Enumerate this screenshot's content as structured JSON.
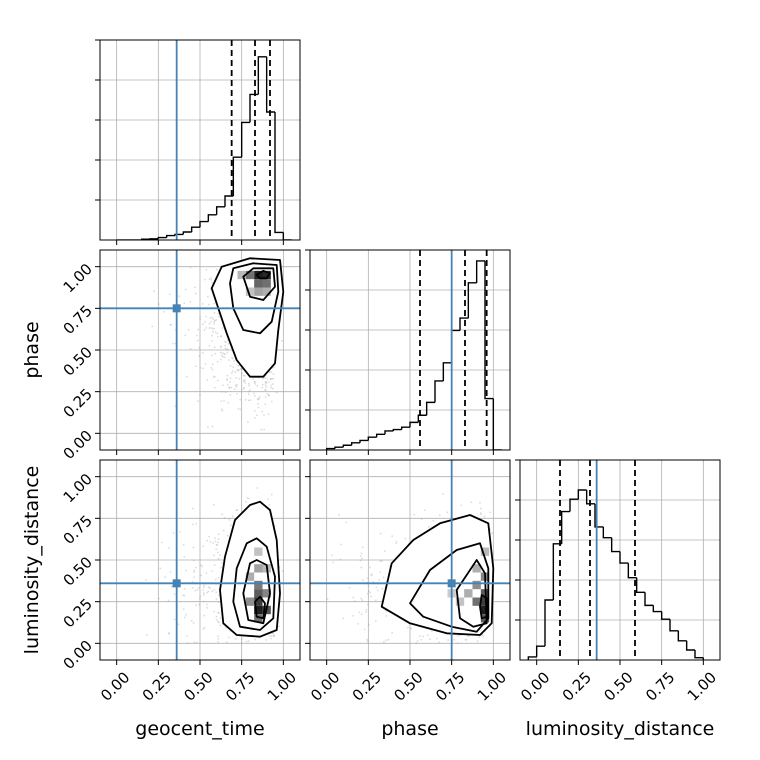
{
  "chart_data": {
    "type": "corner",
    "parameters": [
      "geocent_time",
      "phase",
      "luminosity_distance"
    ],
    "axis_range": [
      -0.1,
      1.1
    ],
    "tick_labels": [
      "0.00",
      "0.25",
      "0.50",
      "0.75",
      "1.00"
    ],
    "grid": true,
    "truths": {
      "geocent_time": 0.36,
      "phase": 0.75,
      "luminosity_distance": 0.36
    },
    "colors": {
      "truth": "#4682b4",
      "hist": "#000000",
      "points": "#9a9a9a",
      "grid": "#b0b0b0"
    },
    "histograms": [
      {
        "parameter": "geocent_time",
        "bin_edges": [
          0.0,
          0.05,
          0.1,
          0.15,
          0.2,
          0.25,
          0.3,
          0.35,
          0.4,
          0.45,
          0.5,
          0.55,
          0.6,
          0.65,
          0.7,
          0.75,
          0.8,
          0.85,
          0.9,
          0.95,
          1.0,
          1.05
        ],
        "counts": [
          0,
          0,
          0,
          0.2,
          0.3,
          0.6,
          1.1,
          1.4,
          2.0,
          3.2,
          4.6,
          6.3,
          8.3,
          11,
          20.7,
          29.4,
          36.4,
          45.8,
          32,
          1.9,
          0
        ],
        "ymax": 50,
        "quantiles": [
          0.69,
          0.83,
          0.92
        ]
      },
      {
        "parameter": "phase",
        "bin_edges": [
          0.0,
          0.05,
          0.1,
          0.15,
          0.2,
          0.25,
          0.3,
          0.35,
          0.4,
          0.45,
          0.5,
          0.55,
          0.6,
          0.65,
          0.7,
          0.75,
          0.8,
          0.85,
          0.9,
          0.95,
          1.0,
          1.05
        ],
        "counts": [
          0.3,
          0.6,
          1.0,
          1.5,
          2.0,
          2.7,
          3.3,
          4.0,
          4.3,
          4.8,
          5.8,
          7.3,
          10.0,
          14.5,
          18.3,
          25.1,
          27.7,
          35.1,
          39.7,
          10.8,
          0
        ],
        "ymax": 42,
        "quantiles": [
          0.56,
          0.83,
          0.96
        ]
      },
      {
        "parameter": "luminosity_distance",
        "bin_edges": [
          -0.05,
          0.0,
          0.05,
          0.1,
          0.15,
          0.2,
          0.25,
          0.3,
          0.35,
          0.4,
          0.45,
          0.5,
          0.55,
          0.6,
          0.65,
          0.7,
          0.75,
          0.8,
          0.85,
          0.9,
          0.95,
          1.0
        ],
        "counts": [
          0.4,
          1.8,
          7.8,
          15.1,
          19.3,
          20.9,
          22.1,
          20.3,
          17.3,
          15.9,
          14.1,
          12.6,
          10.7,
          8.8,
          7.1,
          6.3,
          5.3,
          3.8,
          2.5,
          1.3,
          0.3
        ],
        "ymax": 26,
        "quantiles": [
          0.14,
          0.32,
          0.59
        ]
      }
    ],
    "pairs": [
      {
        "x": "geocent_time",
        "y": "phase",
        "density_cells": [
          {
            "x": 0.85,
            "y": 0.95,
            "d": 1.0
          },
          {
            "x": 0.9,
            "y": 0.95,
            "d": 0.95
          },
          {
            "x": 0.8,
            "y": 0.95,
            "d": 0.6
          },
          {
            "x": 0.85,
            "y": 0.9,
            "d": 0.65
          },
          {
            "x": 0.9,
            "y": 0.9,
            "d": 0.6
          },
          {
            "x": 0.85,
            "y": 0.85,
            "d": 0.35
          },
          {
            "x": 0.9,
            "y": 0.85,
            "d": 0.3
          },
          {
            "x": 0.8,
            "y": 0.85,
            "d": 0.2
          },
          {
            "x": 0.75,
            "y": 0.95,
            "d": 0.25
          }
        ],
        "contours": [
          [
            [
              0.62,
              0.72
            ],
            [
              0.57,
              0.87
            ],
            [
              0.63,
              1.0
            ],
            [
              0.8,
              1.05
            ],
            [
              0.98,
              1.04
            ],
            [
              1.0,
              0.85
            ],
            [
              0.97,
              0.62
            ],
            [
              0.95,
              0.42
            ],
            [
              0.88,
              0.34
            ],
            [
              0.8,
              0.34
            ],
            [
              0.72,
              0.44
            ],
            [
              0.66,
              0.6
            ],
            [
              0.62,
              0.72
            ]
          ],
          [
            [
              0.68,
              0.9
            ],
            [
              0.7,
              0.99
            ],
            [
              0.82,
              1.02
            ],
            [
              0.96,
              1.01
            ],
            [
              0.97,
              0.85
            ],
            [
              0.93,
              0.67
            ],
            [
              0.86,
              0.6
            ],
            [
              0.76,
              0.62
            ],
            [
              0.7,
              0.75
            ],
            [
              0.68,
              0.9
            ]
          ],
          [
            [
              0.76,
              0.94
            ],
            [
              0.82,
              0.99
            ],
            [
              0.94,
              0.99
            ],
            [
              0.95,
              0.88
            ],
            [
              0.88,
              0.8
            ],
            [
              0.8,
              0.82
            ],
            [
              0.76,
              0.94
            ]
          ],
          [
            [
              0.84,
              0.95
            ],
            [
              0.88,
              0.975
            ],
            [
              0.92,
              0.96
            ],
            [
              0.9,
              0.93
            ],
            [
              0.86,
              0.93
            ],
            [
              0.84,
              0.95
            ]
          ]
        ]
      },
      {
        "x": "geocent_time",
        "y": "luminosity_distance",
        "density_cells": [
          {
            "x": 0.85,
            "y": 0.2,
            "d": 1.0
          },
          {
            "x": 0.85,
            "y": 0.25,
            "d": 0.85
          },
          {
            "x": 0.9,
            "y": 0.2,
            "d": 0.75
          },
          {
            "x": 0.85,
            "y": 0.3,
            "d": 0.7
          },
          {
            "x": 0.85,
            "y": 0.35,
            "d": 0.55
          },
          {
            "x": 0.9,
            "y": 0.3,
            "d": 0.5
          },
          {
            "x": 0.8,
            "y": 0.25,
            "d": 0.45
          },
          {
            "x": 0.85,
            "y": 0.45,
            "d": 0.35
          },
          {
            "x": 0.8,
            "y": 0.4,
            "d": 0.3
          },
          {
            "x": 0.9,
            "y": 0.45,
            "d": 0.25
          },
          {
            "x": 0.85,
            "y": 0.55,
            "d": 0.2
          },
          {
            "x": 0.85,
            "y": 0.15,
            "d": 0.6
          }
        ],
        "contours": [
          [
            [
              0.8,
              0.83
            ],
            [
              0.71,
              0.74
            ],
            [
              0.65,
              0.52
            ],
            [
              0.62,
              0.32
            ],
            [
              0.64,
              0.12
            ],
            [
              0.72,
              0.05
            ],
            [
              0.86,
              0.04
            ],
            [
              0.96,
              0.08
            ],
            [
              0.98,
              0.3
            ],
            [
              0.96,
              0.62
            ],
            [
              0.92,
              0.8
            ],
            [
              0.86,
              0.85
            ],
            [
              0.8,
              0.83
            ]
          ],
          [
            [
              0.78,
              0.6
            ],
            [
              0.72,
              0.45
            ],
            [
              0.7,
              0.25
            ],
            [
              0.74,
              0.1
            ],
            [
              0.86,
              0.08
            ],
            [
              0.94,
              0.15
            ],
            [
              0.95,
              0.4
            ],
            [
              0.9,
              0.58
            ],
            [
              0.84,
              0.63
            ],
            [
              0.78,
              0.6
            ]
          ],
          [
            [
              0.8,
              0.48
            ],
            [
              0.76,
              0.3
            ],
            [
              0.79,
              0.14
            ],
            [
              0.88,
              0.12
            ],
            [
              0.92,
              0.3
            ],
            [
              0.9,
              0.47
            ],
            [
              0.84,
              0.5
            ],
            [
              0.8,
              0.48
            ]
          ],
          [
            [
              0.83,
              0.25
            ],
            [
              0.84,
              0.16
            ],
            [
              0.88,
              0.15
            ],
            [
              0.89,
              0.24
            ],
            [
              0.86,
              0.28
            ],
            [
              0.83,
              0.25
            ]
          ]
        ]
      },
      {
        "x": "phase",
        "y": "luminosity_distance",
        "density_cells": [
          {
            "x": 0.95,
            "y": 0.2,
            "d": 1.0
          },
          {
            "x": 0.95,
            "y": 0.25,
            "d": 0.85
          },
          {
            "x": 0.95,
            "y": 0.3,
            "d": 0.7
          },
          {
            "x": 0.9,
            "y": 0.25,
            "d": 0.6
          },
          {
            "x": 0.9,
            "y": 0.35,
            "d": 0.45
          },
          {
            "x": 0.95,
            "y": 0.4,
            "d": 0.5
          },
          {
            "x": 0.95,
            "y": 0.15,
            "d": 0.7
          },
          {
            "x": 0.85,
            "y": 0.3,
            "d": 0.3
          },
          {
            "x": 0.9,
            "y": 0.45,
            "d": 0.3
          },
          {
            "x": 0.8,
            "y": 0.25,
            "d": 0.2
          },
          {
            "x": 0.95,
            "y": 0.55,
            "d": 0.25
          },
          {
            "x": 0.75,
            "y": 0.3,
            "d": 0.15
          }
        ],
        "contours": [
          [
            [
              0.33,
              0.22
            ],
            [
              0.39,
              0.48
            ],
            [
              0.52,
              0.62
            ],
            [
              0.68,
              0.72
            ],
            [
              0.86,
              0.77
            ],
            [
              0.97,
              0.72
            ],
            [
              1.0,
              0.45
            ],
            [
              0.99,
              0.12
            ],
            [
              0.92,
              0.05
            ],
            [
              0.72,
              0.06
            ],
            [
              0.5,
              0.12
            ],
            [
              0.33,
              0.22
            ]
          ],
          [
            [
              0.5,
              0.24
            ],
            [
              0.62,
              0.44
            ],
            [
              0.78,
              0.56
            ],
            [
              0.92,
              0.6
            ],
            [
              0.97,
              0.45
            ],
            [
              0.97,
              0.15
            ],
            [
              0.9,
              0.07
            ],
            [
              0.75,
              0.1
            ],
            [
              0.58,
              0.16
            ],
            [
              0.5,
              0.24
            ]
          ],
          [
            [
              0.78,
              0.32
            ],
            [
              0.9,
              0.5
            ],
            [
              0.95,
              0.42
            ],
            [
              0.96,
              0.12
            ],
            [
              0.88,
              0.1
            ],
            [
              0.8,
              0.15
            ],
            [
              0.78,
              0.32
            ]
          ],
          [
            [
              0.92,
              0.22
            ],
            [
              0.93,
              0.29
            ],
            [
              0.96,
              0.27
            ],
            [
              0.96,
              0.16
            ],
            [
              0.93,
              0.15
            ],
            [
              0.92,
              0.22
            ]
          ]
        ]
      }
    ]
  }
}
